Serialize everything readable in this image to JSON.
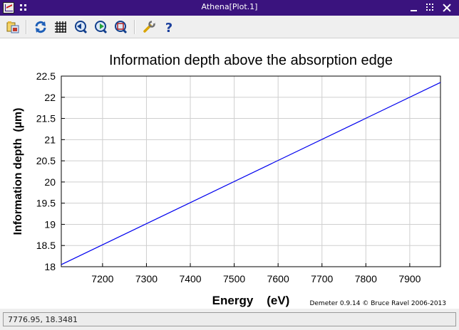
{
  "window": {
    "title": "Athena[Plot.1]"
  },
  "toolbar": {
    "buttons": [
      {
        "name": "save-image-icon"
      },
      {
        "name": "refresh-icon"
      },
      {
        "name": "grid-icon"
      },
      {
        "name": "pan-back-icon"
      },
      {
        "name": "pan-forward-icon"
      },
      {
        "name": "zoom-icon"
      },
      {
        "name": "wrench-icon"
      },
      {
        "name": "help-icon"
      }
    ]
  },
  "chart_data": {
    "type": "line",
    "title": "Information depth above the absorption edge",
    "xlabel": "Energy    (eV)",
    "ylabel": "Information depth  (µm)",
    "xlim": [
      7106,
      7970
    ],
    "ylim": [
      18,
      22.5
    ],
    "xticks": [
      7200,
      7300,
      7400,
      7500,
      7600,
      7700,
      7800,
      7900
    ],
    "yticks": [
      18,
      18.5,
      19,
      19.5,
      20,
      20.5,
      21,
      21.5,
      22,
      22.5
    ],
    "grid": true,
    "series": [
      {
        "color": "#0000ee",
        "x": [
          7106,
          7970
        ],
        "y": [
          18.05,
          22.35
        ]
      }
    ],
    "credit": "Demeter 0.9.14 © Bruce Ravel 2006-2013"
  },
  "status": {
    "text": "7776.95, 18.3481"
  }
}
